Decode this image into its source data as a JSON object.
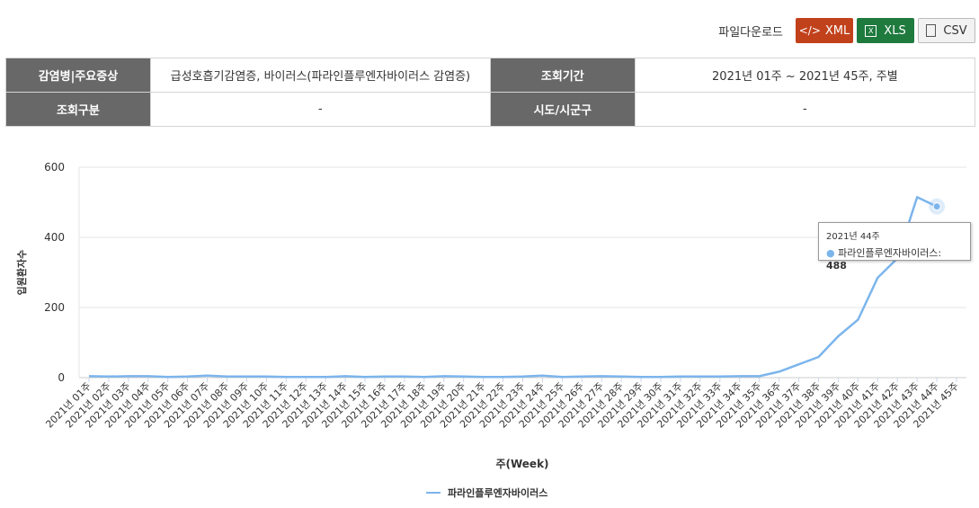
{
  "download": {
    "label": "파일다운로드",
    "xml_label": "XML",
    "xls_label": "XLS",
    "csv_label": "CSV"
  },
  "info": {
    "disease_header": "감염병|주요증상",
    "disease_value": "급성호흡기감염증, 바이러스(파라인플루엔자바이러스 감염증)",
    "period_header": "조회기간",
    "period_value": "2021년 01주 ~ 2021년 45주, 주별",
    "category_header": "조회구분",
    "category_value": "-",
    "region_header": "시도/시군구",
    "region_value": "-"
  },
  "tooltip": {
    "title": "2021년 44주",
    "series": "파라인플루엔자바이러스:",
    "value": "488"
  },
  "chart_data": {
    "type": "line",
    "xlabel": "주(Week)",
    "ylabel": "입원환자수",
    "ylim": [
      0,
      600
    ],
    "yticks": [
      0,
      200,
      400,
      600
    ],
    "grid": true,
    "legend_position": "bottom-center",
    "categories": [
      "2021년 01주",
      "2021년 02주",
      "2021년 03주",
      "2021년 04주",
      "2021년 05주",
      "2021년 06주",
      "2021년 07주",
      "2021년 08주",
      "2021년 09주",
      "2021년 10주",
      "2021년 11주",
      "2021년 12주",
      "2021년 13주",
      "2021년 14주",
      "2021년 15주",
      "2021년 16주",
      "2021년 17주",
      "2021년 18주",
      "2021년 19주",
      "2021년 20주",
      "2021년 21주",
      "2021년 22주",
      "2021년 23주",
      "2021년 24주",
      "2021년 25주",
      "2021년 26주",
      "2021년 27주",
      "2021년 28주",
      "2021년 29주",
      "2021년 30주",
      "2021년 31주",
      "2021년 32주",
      "2021년 33주",
      "2021년 34주",
      "2021년 35주",
      "2021년 36주",
      "2021년 37주",
      "2021년 38주",
      "2021년 39주",
      "2021년 40주",
      "2021년 41주",
      "2021년 42주",
      "2021년 43주",
      "2021년 44주",
      "2021년 45주"
    ],
    "series": [
      {
        "name": "파라인플루엔자바이러스",
        "color": "#7cb5ec",
        "values": [
          4,
          3,
          4,
          4,
          2,
          3,
          6,
          3,
          3,
          3,
          2,
          2,
          2,
          4,
          2,
          3,
          3,
          2,
          4,
          3,
          2,
          2,
          3,
          6,
          2,
          3,
          4,
          3,
          2,
          2,
          3,
          3,
          3,
          4,
          4,
          17,
          38,
          59,
          118,
          165,
          285,
          340,
          515,
          488,
          null
        ]
      }
    ]
  }
}
